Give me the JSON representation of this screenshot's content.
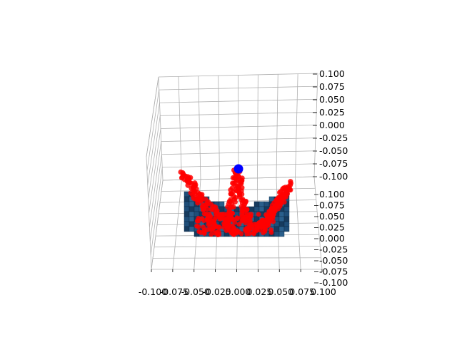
{
  "chart_data": {
    "type": "scatter3d",
    "title": "",
    "xlabel": "",
    "ylabel": "",
    "zlabel": "",
    "grid": true,
    "xlim": [
      -0.1,
      0.1
    ],
    "ylim": [
      -0.1,
      0.1
    ],
    "zlim": [
      -0.1,
      0.1
    ],
    "x_ticks": [
      "-0.100",
      "-0.075",
      "-0.050",
      "-0.025",
      "0.000",
      "0.025",
      "0.050",
      "0.075",
      "0.100"
    ],
    "y_ticks": [
      "-0.100",
      "-0.075",
      "-0.050",
      "-0.025",
      "0.000",
      "0.025",
      "0.050",
      "0.075",
      "0.100"
    ],
    "z_ticks": [
      "-0.100",
      "-0.075",
      "-0.050",
      "-0.025",
      "0.000",
      "0.025",
      "0.050",
      "0.075",
      "0.100"
    ],
    "surface_color": "#1f4e79",
    "marker_series": {
      "color": "#ff0000",
      "approx_count": 450
    },
    "highlight_point": {
      "color": "#0000ff"
    }
  }
}
